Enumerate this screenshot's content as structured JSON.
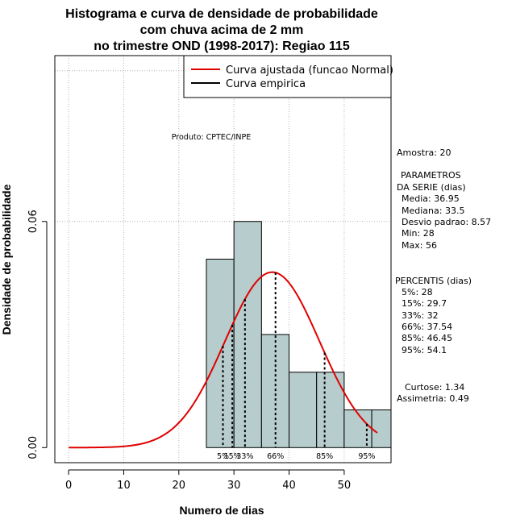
{
  "colors": {
    "bar_fill": "#b7cccc",
    "fitted_curve": "#e00000",
    "grid": "#b4b4b4"
  },
  "chart_data": {
    "type": "histogram",
    "title_lines": [
      "Histograma e curva de densidade de probabilidade",
      "com chuva acima de 2 mm",
      "no trimestre OND (1998-2017): Regiao 115"
    ],
    "xlabel": "Numero de dias",
    "ylabel": "Densidade de probabilidade",
    "xlim": [
      -2.5,
      58.5
    ],
    "ylim": [
      -0.004,
      0.104
    ],
    "x_ticks": [
      0,
      10,
      20,
      30,
      40,
      50
    ],
    "x_tick_labels": [
      "0",
      "10",
      "20",
      "30",
      "40",
      "50"
    ],
    "y_ticks": [
      0.0,
      0.06
    ],
    "y_tick_labels": [
      "0.00",
      "0.06"
    ],
    "grid_x": [
      0,
      10,
      20,
      30,
      40,
      50
    ],
    "grid_y": [
      0.06,
      0.1
    ],
    "grid": true,
    "bins": [
      {
        "start": 25,
        "end": 30,
        "density": 0.05
      },
      {
        "start": 30,
        "end": 35,
        "density": 0.06
      },
      {
        "start": 35,
        "end": 40,
        "density": 0.03
      },
      {
        "start": 40,
        "end": 45,
        "density": 0.02
      },
      {
        "start": 45,
        "end": 50,
        "density": 0.02
      },
      {
        "start": 50,
        "end": 55,
        "density": 0.01
      },
      {
        "start": 55,
        "end": 58.5,
        "density": 0.01
      }
    ],
    "fitted_curve": {
      "distribution": "normal",
      "mean": 36.95,
      "sd": 8.57,
      "x_range": [
        0,
        56
      ]
    },
    "percentile_lines": [
      {
        "label": "5%",
        "x": 28
      },
      {
        "label": "15%",
        "x": 29.7
      },
      {
        "label": "33%",
        "x": 32
      },
      {
        "label": "66%",
        "x": 37.54
      },
      {
        "label": "85%",
        "x": 46.45
      },
      {
        "label": "95%",
        "x": 54.1
      }
    ],
    "legend": {
      "position": "top-right",
      "entries": [
        {
          "label": "Curva ajustada (funcao Normal)",
          "color": "#e00000"
        },
        {
          "label": "Curva empirica",
          "color": "#000000"
        }
      ]
    },
    "credit": "Produto: CPTEC/INPE"
  },
  "stats_panel": {
    "sample": "Amostra: 20",
    "params_title_1": "PARAMETROS",
    "params_title_2": "DA SERIE (dias)",
    "media": "Media: 36.95",
    "mediana": "Mediana: 33.5",
    "desvio": "Desvio padrao: 8.57",
    "min": "Min: 28",
    "max": "Max: 56",
    "percentis_title": "PERCENTIS (dias)",
    "p5": "5%: 28",
    "p15": "15%: 29.7",
    "p33": "33%: 32",
    "p66": "66%: 37.54",
    "p85": "85%: 46.45",
    "p95": "95%: 54.1",
    "curtose": "Curtose: 1.34",
    "assimetria": "Assimetria: 0.49"
  }
}
